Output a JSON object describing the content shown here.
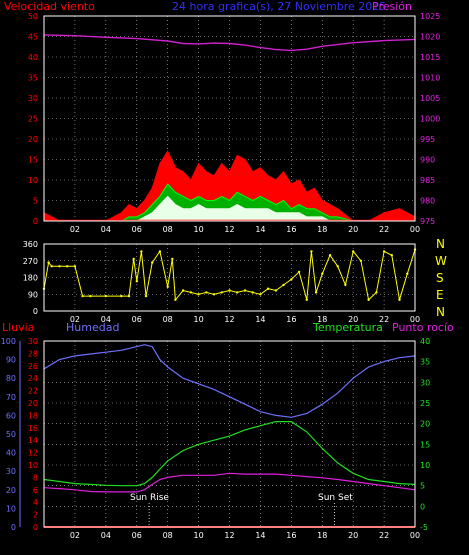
{
  "header": {
    "left_label": "Velocidad viento",
    "center_label": "24 hora grafica(s), 27 Noviembre 2015",
    "right_label": "Presión"
  },
  "direction_labels": [
    "N",
    "W",
    "S",
    "E",
    "N"
  ],
  "bottom_labels": {
    "rain": "Lluvia",
    "humidity": "Humedad",
    "temperature": "Temperatura",
    "dewpoint": "Punto rocío",
    "sunrise": "Sun Rise",
    "sunset": "Sun Set"
  },
  "colors": {
    "wind": "#ff0000",
    "gust_fill": "#ff0000",
    "avg": "#00b000",
    "low": "#e8ffe8",
    "pressure": "#d020d0",
    "direction": "#ffff00",
    "humidity": "#7070ff",
    "temperature": "#20e020",
    "dewpoint": "#e020e0",
    "rain": "#ff0000",
    "grid": "#c0c0c0"
  },
  "chart_data": [
    {
      "type": "area",
      "title": "24 hora grafica(s), 27 Noviembre 2015",
      "ylabel": "Velocidad viento",
      "y2label": "Presión",
      "xticks": [
        "02",
        "04",
        "06",
        "08",
        "10",
        "12",
        "14",
        "16",
        "18",
        "20",
        "22",
        "00"
      ],
      "ylim": [
        0,
        50
      ],
      "yticks": [
        0,
        5,
        10,
        15,
        20,
        25,
        30,
        35,
        40,
        45,
        50
      ],
      "y2lim": [
        975,
        1025
      ],
      "y2ticks": [
        975,
        980,
        985,
        990,
        995,
        1000,
        1005,
        1010,
        1015,
        1020,
        1025
      ],
      "grid": true,
      "x_hours": [
        0,
        1,
        2,
        3,
        4,
        5,
        5.5,
        6,
        6.5,
        7,
        7.5,
        8,
        8.5,
        9,
        9.5,
        10,
        10.5,
        11,
        11.5,
        12,
        12.5,
        13,
        13.5,
        14,
        14.5,
        15,
        15.5,
        16,
        16.5,
        17,
        17.5,
        18,
        18.5,
        19,
        20,
        21,
        22,
        23,
        24
      ],
      "series": [
        {
          "values": [
            2,
            0,
            0,
            0,
            0,
            2,
            4,
            3,
            5,
            8,
            14,
            17,
            13,
            12,
            10,
            14,
            12,
            11,
            14,
            12,
            16,
            15,
            12,
            13,
            11,
            10,
            12,
            9,
            10,
            7,
            8,
            5,
            4,
            3,
            0,
            0,
            2,
            3,
            1
          ]
        },
        {
          "values": [
            0,
            0,
            0,
            0,
            0,
            0,
            1,
            1,
            2,
            4,
            6,
            9,
            7,
            6,
            5,
            6,
            5,
            5,
            6,
            5,
            7,
            6,
            5,
            6,
            5,
            4,
            5,
            3,
            4,
            3,
            3,
            2,
            1,
            1,
            0,
            0,
            0,
            0,
            0
          ]
        },
        {
          "values": [
            0,
            0,
            0,
            0,
            0,
            0,
            0,
            0,
            1,
            2,
            4,
            6,
            4,
            3,
            3,
            4,
            3,
            3,
            3,
            3,
            4,
            3,
            3,
            3,
            3,
            2,
            2,
            2,
            2,
            1,
            1,
            1,
            0,
            0,
            0,
            0,
            0,
            0,
            0
          ]
        }
      ],
      "pressure": {
        "x_hours": [
          0,
          2,
          4,
          6,
          8,
          9,
          10,
          11,
          12,
          13,
          14,
          15,
          16,
          17,
          18,
          20,
          22,
          24
        ],
        "values": [
          1020.4,
          1020.2,
          1019.8,
          1019.5,
          1018.9,
          1018.3,
          1018.2,
          1018.4,
          1018.3,
          1017.9,
          1017.3,
          1016.8,
          1016.6,
          1016.9,
          1017.6,
          1018.5,
          1019.0,
          1019.3
        ]
      }
    },
    {
      "type": "scatter",
      "xticks": [
        "02",
        "04",
        "06",
        "08",
        "10",
        "12",
        "14",
        "16",
        "18",
        "20",
        "22",
        "00"
      ],
      "ylim": [
        0,
        360
      ],
      "yticks": [
        0,
        90,
        180,
        270,
        360
      ],
      "grid": true,
      "x_hours": [
        0,
        0.3,
        0.5,
        1,
        1.5,
        2,
        2.5,
        3,
        4,
        5,
        5.5,
        5.8,
        6,
        6.3,
        6.6,
        7,
        7.5,
        8,
        8.3,
        8.5,
        9,
        9.5,
        10,
        10.5,
        11,
        11.5,
        12,
        12.5,
        13,
        13.5,
        14,
        14.5,
        15,
        15.5,
        16,
        16.5,
        17,
        17.3,
        17.6,
        18,
        18.5,
        19,
        19.5,
        20,
        20.5,
        21,
        21.5,
        22,
        22.5,
        23,
        23.5,
        24
      ],
      "values": [
        120,
        260,
        240,
        240,
        240,
        240,
        80,
        80,
        80,
        80,
        80,
        280,
        160,
        320,
        80,
        260,
        320,
        130,
        280,
        60,
        110,
        100,
        90,
        100,
        90,
        100,
        110,
        100,
        110,
        100,
        90,
        120,
        110,
        140,
        170,
        210,
        60,
        320,
        100,
        200,
        300,
        240,
        140,
        320,
        270,
        60,
        100,
        320,
        300,
        60,
        200,
        330
      ]
    },
    {
      "type": "line",
      "xticks": [
        "02",
        "04",
        "06",
        "08",
        "10",
        "12",
        "14",
        "16",
        "18",
        "20",
        "22",
        "00"
      ],
      "ylabel": "Lluvia",
      "ylim": [
        0,
        30
      ],
      "yticks": [
        0,
        2,
        4,
        6,
        8,
        10,
        12,
        14,
        16,
        18,
        20,
        22,
        24,
        26,
        28,
        30
      ],
      "y_humidity_lim": [
        0,
        100
      ],
      "y_humidity_ticks": [
        0,
        10,
        20,
        30,
        40,
        50,
        60,
        70,
        80,
        90,
        100
      ],
      "y2lim": [
        -5,
        40
      ],
      "y2ticks": [
        -5,
        0,
        5,
        10,
        15,
        20,
        25,
        30,
        35,
        40
      ],
      "grid": true,
      "annotations": [
        "Sun Rise",
        "Sun Set"
      ],
      "sunrise_hour": 6.8,
      "sunset_hour": 18.8,
      "x_hours": [
        0,
        1,
        2,
        3,
        4,
        5,
        6,
        6.5,
        7,
        7.5,
        8,
        9,
        10,
        11,
        12,
        13,
        14,
        15,
        16,
        17,
        18,
        19,
        20,
        21,
        22,
        23,
        24
      ],
      "series": [
        {
          "name": "Humedad",
          "axis": "humidity",
          "values": [
            85,
            90,
            92,
            93,
            94,
            95,
            97,
            98,
            97,
            90,
            86,
            80,
            77,
            74,
            70,
            66,
            62,
            60,
            59,
            61,
            66,
            72,
            80,
            86,
            89,
            91,
            92
          ]
        },
        {
          "name": "Temperatura",
          "axis": "right",
          "values": [
            6.5,
            6,
            5.5,
            5.3,
            5.1,
            5,
            5,
            5.5,
            7,
            9,
            11,
            13.5,
            15,
            16,
            17,
            18.5,
            19.5,
            20.5,
            20.5,
            18,
            14,
            10.5,
            8,
            6.5,
            6,
            5.5,
            5.3
          ]
        },
        {
          "name": "Punto rocío",
          "axis": "right",
          "values": [
            4.5,
            4.3,
            4,
            3.6,
            3.5,
            3.5,
            3.5,
            4,
            5.3,
            6.5,
            7,
            7.5,
            7.5,
            7.5,
            8,
            7.8,
            7.8,
            7.8,
            7.5,
            7.2,
            6.9,
            6.5,
            6,
            5.5,
            5,
            4.5,
            4
          ]
        },
        {
          "name": "Lluvia",
          "axis": "left",
          "values": [
            0,
            0,
            0,
            0,
            0,
            0,
            0,
            0,
            0,
            0,
            0,
            0,
            0,
            0,
            0,
            0,
            0,
            0,
            0,
            0,
            0,
            0,
            0,
            0,
            0,
            0,
            0
          ]
        }
      ]
    }
  ]
}
